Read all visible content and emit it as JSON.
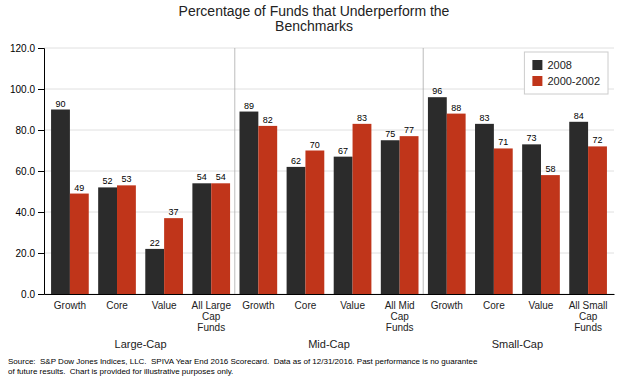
{
  "chart_data": {
    "type": "bar",
    "title": "Percentage of Funds that Underperform the\nBenchmarks",
    "categories": [
      "Growth",
      "Core",
      "Value",
      "All Large\nCap\nFunds",
      "Growth",
      "Core",
      "Value",
      "All Mid\nCap\nFunds",
      "Growth",
      "Core",
      "Value",
      "All Small\nCap\nFunds"
    ],
    "series": [
      {
        "name": "2008",
        "color": "#2b2b2b",
        "values": [
          90,
          52,
          22,
          54,
          89,
          62,
          67,
          75,
          96,
          83,
          73,
          84
        ]
      },
      {
        "name": "2000-2002",
        "color": "#c0351a",
        "values": [
          49,
          53,
          37,
          54,
          82,
          70,
          83,
          77,
          88,
          71,
          58,
          72
        ]
      }
    ],
    "group_labels": [
      "Large-Cap",
      "Mid-Cap",
      "Small-Cap"
    ],
    "source": "Source:  S&P Dow Jones Indices, LLC.  SPIVA Year End 2016 Scorecard.  Data as of 12/31/2016. Past performance is no guarantee\nof future results.  Chart is provided for illustrative purposes only.",
    "ylim": [
      0,
      120
    ],
    "yticks": [
      {
        "value": 0,
        "label": "0.0"
      },
      {
        "value": 20,
        "label": "20.0"
      },
      {
        "value": 40,
        "label": "40.0"
      },
      {
        "value": 60,
        "label": "60.0"
      },
      {
        "value": 80,
        "label": "80.0"
      },
      {
        "value": 100,
        "label": "100.0"
      },
      {
        "value": 120,
        "label": "120.0"
      }
    ],
    "grid": true,
    "legend": "upper right",
    "data_labels": true
  }
}
